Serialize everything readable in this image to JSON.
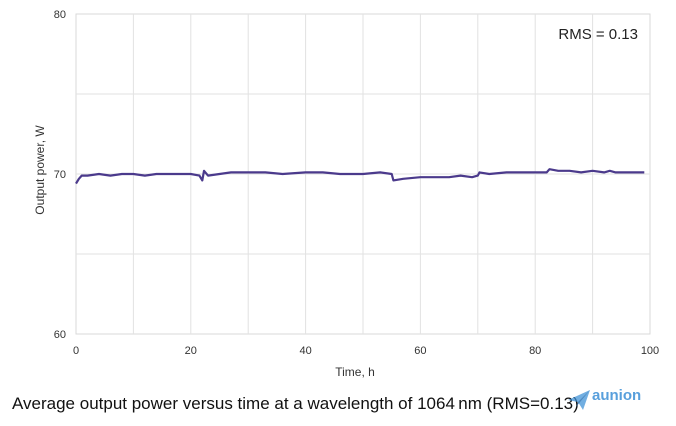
{
  "chart_data": {
    "type": "line",
    "title": "",
    "xlabel": "Time, h",
    "ylabel": "Output power, W",
    "xlim": [
      0,
      100
    ],
    "ylim": [
      60,
      80
    ],
    "xticks": [
      0,
      20,
      40,
      60,
      80,
      100
    ],
    "yticks": [
      60,
      70,
      80
    ],
    "grid": true,
    "annotation": "RMS = 0.13",
    "line_color": "#4b3a8c",
    "series": [
      {
        "x": [
          0,
          0.5,
          1,
          2,
          4,
          6,
          8,
          10,
          12,
          14,
          16,
          18,
          20,
          21.5,
          22,
          22.3,
          23,
          25,
          27,
          30,
          33,
          36,
          40,
          43,
          46,
          50,
          53,
          55,
          55.3,
          57,
          60,
          63,
          65,
          67,
          69,
          70,
          70.3,
          72,
          75,
          78,
          80,
          82,
          82.5,
          84,
          86,
          88,
          90,
          92,
          93,
          94,
          96,
          98,
          99
        ],
        "y": [
          69.4,
          69.7,
          69.9,
          69.9,
          70.0,
          69.9,
          70.0,
          70.0,
          69.9,
          70.0,
          70.0,
          70.0,
          70.0,
          69.9,
          69.6,
          70.2,
          69.9,
          70.0,
          70.1,
          70.1,
          70.1,
          70.0,
          70.1,
          70.1,
          70.0,
          70.0,
          70.1,
          70.0,
          69.6,
          69.7,
          69.8,
          69.8,
          69.8,
          69.9,
          69.8,
          69.9,
          70.1,
          70.0,
          70.1,
          70.1,
          70.1,
          70.1,
          70.3,
          70.2,
          70.2,
          70.1,
          70.2,
          70.1,
          70.2,
          70.1,
          70.1,
          70.1,
          70.1
        ]
      }
    ]
  },
  "caption": "Average output power versus time at a wavelength of 1064 nm (RMS=0.13)",
  "watermark": {
    "name": "aunion",
    "subtitle": "",
    "icon": "paper-plane-icon",
    "color": "#3b8fd6"
  }
}
